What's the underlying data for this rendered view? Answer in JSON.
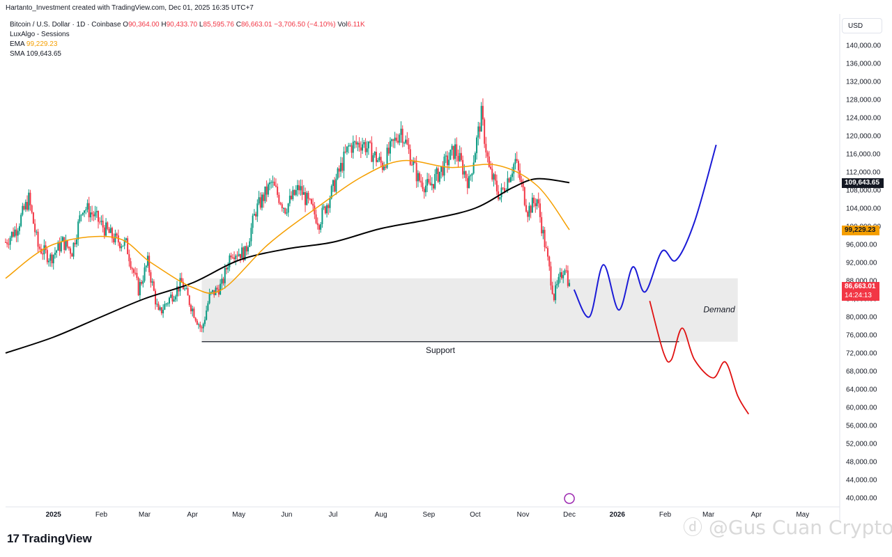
{
  "header": {
    "attribution": "Hartanto_Investment created with TradingView.com, Dec 01, 2025 16:35 UTC+7",
    "symbol": "Bitcoin / U.S. Dollar · 1D · Coinbase",
    "o_label": "O",
    "o_value": "90,364.00",
    "h_label": "H",
    "h_value": "90,433.70",
    "l_label": "L",
    "l_value": "85,595.76",
    "c_label": "C",
    "c_value": "86,663.01",
    "change": "−3,706.50 (−4.10%)",
    "vol_label": "Vol",
    "vol_value": "6.11K",
    "indicator1": "LuxAlgo - Sessions",
    "ema_label": "EMA",
    "ema_value": "99,229.23",
    "sma_label": "SMA",
    "sma_value": "109,643.65"
  },
  "currency_button": "USD",
  "brand": {
    "logo": "17",
    "name": "TradingView"
  },
  "watermark": "ⓓ @Gus Cuan Crypto",
  "colors": {
    "up": "#089981",
    "down": "#f23645",
    "ema": "#f59f00",
    "sma": "#000000",
    "bull_path": "#1a1ad6",
    "bear_path": "#e01010",
    "zone": "#ebebeb"
  },
  "chart_data": {
    "type": "candlestick",
    "y_axis": {
      "min": 40000,
      "max": 140000,
      "ticks": [
        "40,000.00",
        "44,000.00",
        "48,000.00",
        "52,000.00",
        "56,000.00",
        "60,000.00",
        "64,000.00",
        "68,000.00",
        "72,000.00",
        "76,000.00",
        "80,000.00",
        "84,000.00",
        "88,000.00",
        "92,000.00",
        "96,000.00",
        "100,000.00",
        "104,000.00",
        "108,000.00",
        "112,000.00",
        "116,000.00",
        "120,000.00",
        "124,000.00",
        "128,000.00",
        "132,000.00",
        "136,000.00",
        "140,000.00"
      ]
    },
    "x_axis": {
      "labels": [
        {
          "label": "2025",
          "date": "2025-01-01"
        },
        {
          "label": "Feb",
          "date": "2025-02-01"
        },
        {
          "label": "Mar",
          "date": "2025-03-01"
        },
        {
          "label": "Apr",
          "date": "2025-04-01"
        },
        {
          "label": "May",
          "date": "2025-05-01"
        },
        {
          "label": "Jun",
          "date": "2025-06-01"
        },
        {
          "label": "Jul",
          "date": "2025-07-01"
        },
        {
          "label": "Aug",
          "date": "2025-08-01"
        },
        {
          "label": "Sep",
          "date": "2025-09-01"
        },
        {
          "label": "Oct",
          "date": "2025-10-01"
        },
        {
          "label": "Nov",
          "date": "2025-11-01"
        },
        {
          "label": "Dec",
          "date": "2025-12-01"
        },
        {
          "label": "2026",
          "date": "2026-01-01"
        },
        {
          "label": "Feb",
          "date": "2026-02-01"
        },
        {
          "label": "Mar",
          "date": "2026-03-01"
        },
        {
          "label": "Apr",
          "date": "2026-04-01"
        },
        {
          "label": "May",
          "date": "2026-05-01"
        }
      ]
    },
    "price_close_path": [
      [
        "2024-12-01",
        96500
      ],
      [
        "2024-12-08",
        99500
      ],
      [
        "2024-12-16",
        106000
      ],
      [
        "2024-12-22",
        95500
      ],
      [
        "2024-12-30",
        93000
      ],
      [
        "2025-01-07",
        96500
      ],
      [
        "2025-01-13",
        94500
      ],
      [
        "2025-01-20",
        104500
      ],
      [
        "2025-01-27",
        102500
      ],
      [
        "2025-02-03",
        99500
      ],
      [
        "2025-02-10",
        97000
      ],
      [
        "2025-02-17",
        96000
      ],
      [
        "2025-02-25",
        86000
      ],
      [
        "2025-03-03",
        92000
      ],
      [
        "2025-03-10",
        80500
      ],
      [
        "2025-03-17",
        84000
      ],
      [
        "2025-03-25",
        87500
      ],
      [
        "2025-03-31",
        82500
      ],
      [
        "2025-04-07",
        77000
      ],
      [
        "2025-04-12",
        84500
      ],
      [
        "2025-04-20",
        87000
      ],
      [
        "2025-04-26",
        94500
      ],
      [
        "2025-05-05",
        94000
      ],
      [
        "2025-05-12",
        103500
      ],
      [
        "2025-05-22",
        109500
      ],
      [
        "2025-05-31",
        104000
      ],
      [
        "2025-06-09",
        108500
      ],
      [
        "2025-06-22",
        101000
      ],
      [
        "2025-06-30",
        107500
      ],
      [
        "2025-07-11",
        117500
      ],
      [
        "2025-07-20",
        118500
      ],
      [
        "2025-08-02",
        113500
      ],
      [
        "2025-08-14",
        121500
      ],
      [
        "2025-08-25",
        110500
      ],
      [
        "2025-09-01",
        108500
      ],
      [
        "2025-09-18",
        117000
      ],
      [
        "2025-09-27",
        109500
      ],
      [
        "2025-10-05",
        124500
      ],
      [
        "2025-10-10",
        112500
      ],
      [
        "2025-10-17",
        106500
      ],
      [
        "2025-10-27",
        114500
      ],
      [
        "2025-11-04",
        103500
      ],
      [
        "2025-11-10",
        106000
      ],
      [
        "2025-11-21",
        84500
      ],
      [
        "2025-11-28",
        91500
      ],
      [
        "2025-12-01",
        86663
      ]
    ],
    "ema": {
      "name": "EMA",
      "value": 99229.23,
      "path": [
        [
          "2024-12-01",
          88500
        ],
        [
          "2025-01-01",
          96000
        ],
        [
          "2025-02-10",
          97500
        ],
        [
          "2025-03-05",
          92000
        ],
        [
          "2025-04-01",
          86500
        ],
        [
          "2025-04-20",
          86000
        ],
        [
          "2025-05-20",
          96000
        ],
        [
          "2025-06-20",
          104000
        ],
        [
          "2025-07-20",
          111000
        ],
        [
          "2025-08-15",
          114500
        ],
        [
          "2025-09-15",
          113000
        ],
        [
          "2025-10-15",
          113500
        ],
        [
          "2025-11-10",
          109000
        ],
        [
          "2025-12-01",
          99229
        ]
      ]
    },
    "sma": {
      "name": "SMA",
      "value": 109643.65,
      "path": [
        [
          "2024-12-01",
          72000
        ],
        [
          "2025-01-01",
          75500
        ],
        [
          "2025-02-01",
          80000
        ],
        [
          "2025-03-01",
          84000
        ],
        [
          "2025-04-01",
          87500
        ],
        [
          "2025-05-01",
          92500
        ],
        [
          "2025-06-01",
          95000
        ],
        [
          "2025-07-01",
          96500
        ],
        [
          "2025-08-01",
          99500
        ],
        [
          "2025-09-01",
          101500
        ],
        [
          "2025-10-01",
          104000
        ],
        [
          "2025-10-25",
          108500
        ],
        [
          "2025-11-10",
          110500
        ],
        [
          "2025-12-01",
          109644
        ]
      ]
    },
    "zones": [
      {
        "label": "Demand",
        "from": "2025-04-07",
        "to": "2026-03-20",
        "low": 74500,
        "high": 88500
      },
      {
        "label": "Support",
        "from": "2025-04-07",
        "to": "2026-02-10",
        "price": 74500
      }
    ],
    "projection_bull": [
      [
        "2025-12-04",
        86000
      ],
      [
        "2025-12-14",
        80000
      ],
      [
        "2025-12-23",
        91500
      ],
      [
        "2026-01-02",
        81500
      ],
      [
        "2026-01-11",
        91000
      ],
      [
        "2026-01-19",
        85500
      ],
      [
        "2026-01-30",
        94500
      ],
      [
        "2026-02-08",
        92500
      ],
      [
        "2026-02-20",
        101000
      ],
      [
        "2026-03-06",
        118000
      ]
    ],
    "projection_bear": [
      [
        "2026-01-22",
        83500
      ],
      [
        "2026-01-31",
        72000
      ],
      [
        "2026-02-05",
        70500
      ],
      [
        "2026-02-12",
        77500
      ],
      [
        "2026-02-20",
        70500
      ],
      [
        "2026-03-04",
        66500
      ],
      [
        "2026-03-12",
        70000
      ],
      [
        "2026-03-20",
        62500
      ],
      [
        "2026-03-27",
        58500
      ]
    ],
    "last_price": {
      "value": "86,663.01",
      "countdown": "14:24:13"
    },
    "ema_tag": "99,229.23",
    "sma_tag": "109,643.65"
  }
}
